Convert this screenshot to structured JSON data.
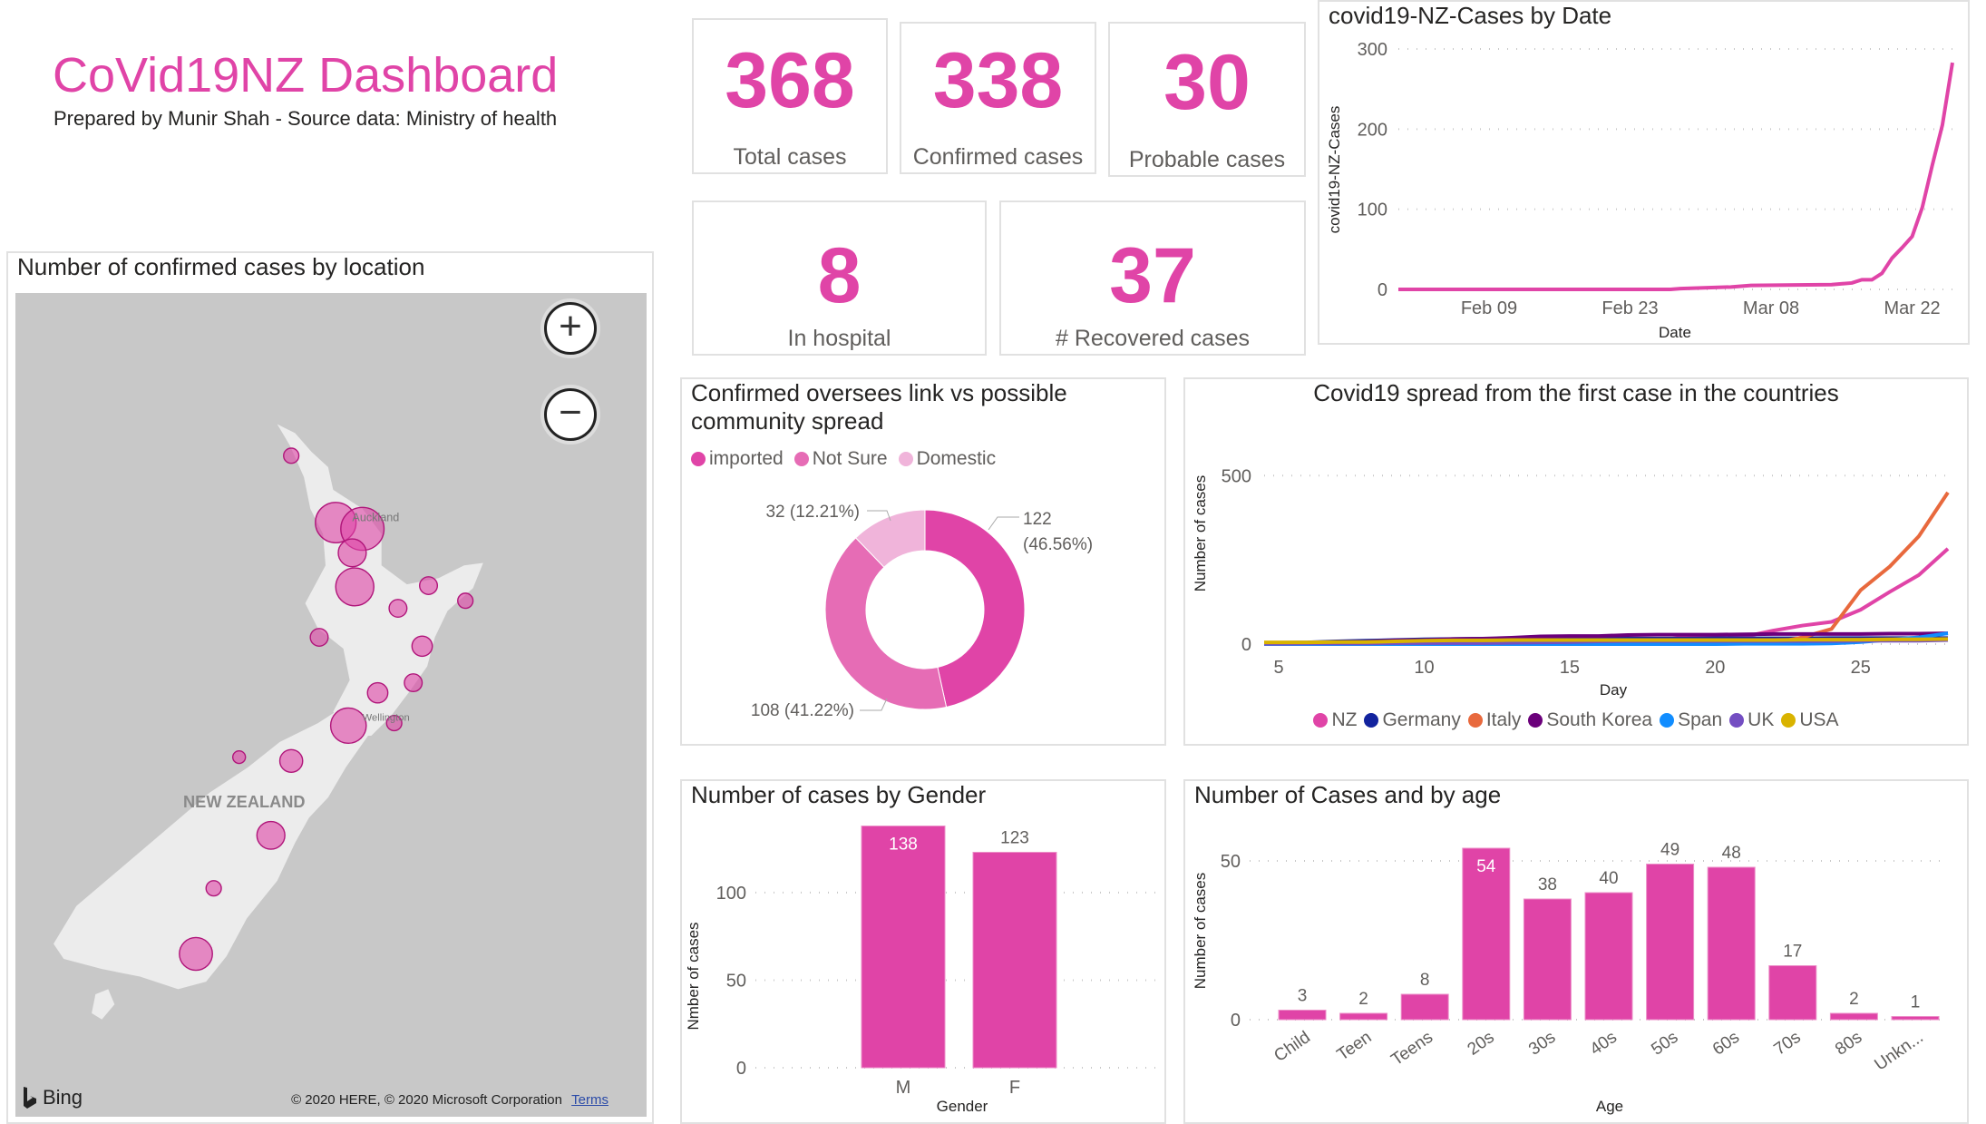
{
  "header": {
    "title": "CoVid19NZ Dashboard",
    "subtitle": "Prepared by Munir Shah - Source data: Ministry of health"
  },
  "kpis": [
    {
      "value": "368",
      "label": "Total cases"
    },
    {
      "value": "338",
      "label": "Confirmed cases"
    },
    {
      "value": "30",
      "label": "Probable cases"
    },
    {
      "value": "8",
      "label": "In hospital"
    },
    {
      "value": "37",
      "label": "# Recovered cases"
    }
  ],
  "map": {
    "title": "Number of confirmed cases by location",
    "zoom_in": "+",
    "zoom_out": "−",
    "labels": {
      "auckland": "Auckland",
      "wellington": "Wellington",
      "country": "NEW ZEALAND"
    },
    "brand": "Bing",
    "copyright": "© 2020 HERE, © 2020 Microsoft Corporation",
    "terms": "Terms",
    "bubble_color": "#e044a7"
  },
  "colors": {
    "accent": "#e044a7"
  },
  "chart_data": [
    {
      "id": "nz-by-date",
      "type": "line",
      "title": "covid19-NZ-Cases by Date",
      "xlabel": "Date",
      "ylabel": "covid19-NZ-Cases",
      "ylim": [
        0,
        300
      ],
      "yticks": [
        "0",
        "100",
        "200",
        "300"
      ],
      "xticks": [
        "Feb 09",
        "Feb 23",
        "Mar 08",
        "Mar 22"
      ],
      "xtick_dates": [
        "2020-02-09",
        "2020-02-23",
        "2020-03-08",
        "2020-03-22"
      ],
      "xlim": [
        "2020-01-31",
        "2020-03-26"
      ],
      "grid": true,
      "color": "#e044a7",
      "points": [
        [
          "2020-01-31",
          0
        ],
        [
          "2020-02-27",
          0
        ],
        [
          "2020-02-28",
          1
        ],
        [
          "2020-03-04",
          3
        ],
        [
          "2020-03-06",
          5
        ],
        [
          "2020-03-14",
          6
        ],
        [
          "2020-03-16",
          8
        ],
        [
          "2020-03-17",
          12
        ],
        [
          "2020-03-18",
          12
        ],
        [
          "2020-03-19",
          20
        ],
        [
          "2020-03-20",
          39
        ],
        [
          "2020-03-21",
          52
        ],
        [
          "2020-03-22",
          66
        ],
        [
          "2020-03-23",
          102
        ],
        [
          "2020-03-24",
          155
        ],
        [
          "2020-03-25",
          205
        ],
        [
          "2020-03-26",
          283
        ]
      ]
    },
    {
      "id": "source-donut",
      "type": "pie",
      "title_lines": [
        "Confirmed oversees link vs possible",
        "community spread"
      ],
      "legend": "top",
      "slices": [
        {
          "name": "imported",
          "value": 122,
          "pct": "46.56%",
          "color": "#e044a7",
          "label_lines": [
            "122",
            "(46.56%)"
          ]
        },
        {
          "name": "Not Sure",
          "value": 108,
          "pct": "41.22%",
          "color": "#e66cb5",
          "label_lines": [
            "108 (41.22%)"
          ]
        },
        {
          "name": "Domestic",
          "value": 32,
          "pct": "12.21%",
          "color": "#f0b4da",
          "label_lines": [
            "32 (12.21%)"
          ]
        }
      ]
    },
    {
      "id": "countries",
      "type": "line",
      "title": "Covid19 spread from the first case in the countries",
      "xlabel": "Day",
      "ylabel": "Number of cases",
      "xlim": [
        4.5,
        28
      ],
      "ylim": [
        0,
        665
      ],
      "xticks": [
        5,
        10,
        15,
        20,
        25
      ],
      "yticks": [
        0,
        500
      ],
      "grid": true,
      "legend": "bottom",
      "x": [
        5,
        6,
        7,
        8,
        9,
        10,
        11,
        12,
        13,
        14,
        15,
        16,
        17,
        18,
        19,
        20,
        21,
        22,
        23,
        24,
        25,
        26,
        27,
        28
      ],
      "series": [
        {
          "name": "NZ",
          "color": "#e044a7",
          "values": [
            1,
            1,
            2,
            3,
            4,
            5,
            5,
            6,
            6,
            6,
            8,
            8,
            12,
            12,
            20,
            20,
            22,
            40,
            55,
            66,
            102,
            155,
            205,
            283
          ]
        },
        {
          "name": "Germany",
          "color": "#12239e",
          "values": [
            4,
            5,
            8,
            10,
            12,
            14,
            15,
            16,
            16,
            16,
            16,
            16,
            16,
            16,
            16,
            17,
            17,
            17,
            17,
            18,
            18,
            18,
            18,
            18
          ]
        },
        {
          "name": "Italy",
          "color": "#e8693d",
          "values": [
            2,
            2,
            3,
            3,
            3,
            3,
            3,
            3,
            3,
            3,
            3,
            3,
            3,
            3,
            3,
            3,
            3,
            3,
            20,
            45,
            160,
            230,
            320,
            450
          ]
        },
        {
          "name": "South Korea",
          "color": "#6b007b",
          "values": [
            3,
            4,
            6,
            7,
            11,
            12,
            15,
            16,
            19,
            23,
            24,
            24,
            27,
            28,
            28,
            28,
            29,
            30,
            30,
            30,
            30,
            31,
            31,
            32
          ]
        },
        {
          "name": "Span",
          "color": "#118dff",
          "values": [
            0,
            0,
            0,
            0,
            0,
            0,
            0,
            0,
            0,
            0,
            0,
            0,
            0,
            0,
            0,
            0,
            1,
            1,
            1,
            2,
            6,
            13,
            20,
            32
          ]
        },
        {
          "name": "UK",
          "color": "#744ec2",
          "values": [
            1,
            2,
            2,
            2,
            3,
            3,
            3,
            3,
            4,
            5,
            6,
            8,
            9,
            9,
            9,
            9,
            9,
            9,
            9,
            9,
            10,
            10,
            10,
            12
          ]
        },
        {
          "name": "USA",
          "color": "#d9b300",
          "values": [
            5,
            5,
            6,
            6,
            8,
            10,
            11,
            11,
            12,
            12,
            12,
            12,
            12,
            12,
            12,
            12,
            12,
            12,
            13,
            13,
            13,
            14,
            14,
            15
          ]
        }
      ]
    },
    {
      "id": "gender",
      "type": "bar",
      "title": "Number of cases by Gender",
      "xlabel": "Gender",
      "ylabel": "Nmber of cases",
      "categories": [
        "M",
        "F"
      ],
      "values": [
        138,
        123
      ],
      "ylim": [
        0,
        145
      ],
      "yticks": [
        0,
        50,
        100
      ],
      "color": "#e044a7"
    },
    {
      "id": "age",
      "type": "bar",
      "title": "Number of Cases and by age",
      "xlabel": "Age",
      "ylabel": "Number of cases",
      "categories": [
        "Child",
        "Teen",
        "Teens",
        "20s",
        "30s",
        "40s",
        "50s",
        "60s",
        "70s",
        "80s",
        "Unkn..."
      ],
      "values": [
        3,
        2,
        8,
        54,
        38,
        40,
        49,
        48,
        17,
        2,
        1
      ],
      "ylim": [
        0,
        58
      ],
      "yticks": [
        0,
        50
      ],
      "color": "#e044a7"
    }
  ]
}
